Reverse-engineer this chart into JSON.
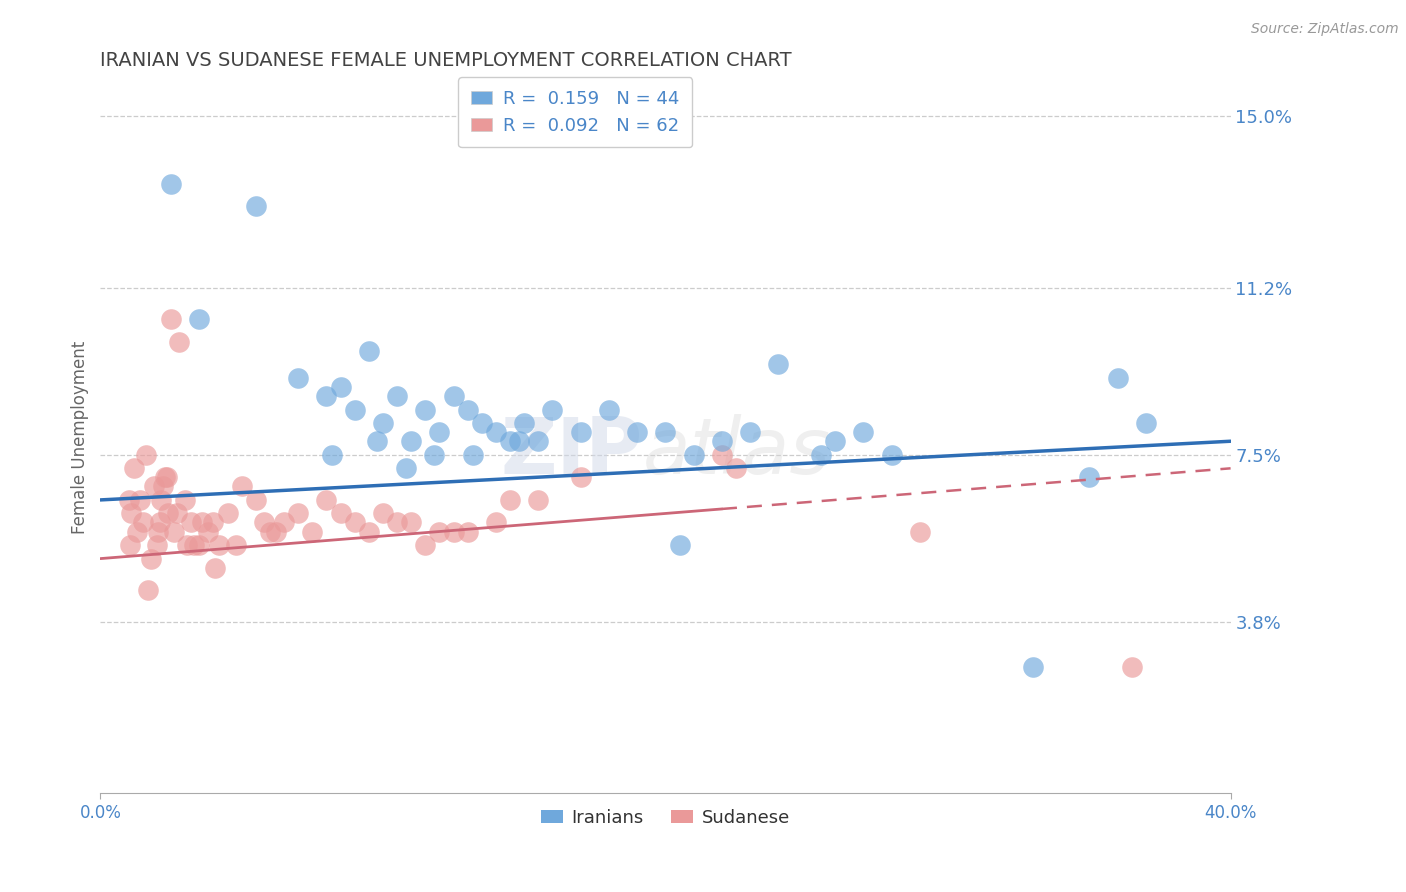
{
  "title": "IRANIAN VS SUDANESE FEMALE UNEMPLOYMENT CORRELATION CHART",
  "source_text": "Source: ZipAtlas.com",
  "ylabel": "Female Unemployment",
  "xlim": [
    0.0,
    40.0
  ],
  "ylim": [
    0.0,
    15.75
  ],
  "yticks": [
    3.8,
    7.5,
    11.2,
    15.0
  ],
  "ytick_labels": [
    "3.8%",
    "7.5%",
    "11.2%",
    "15.0%"
  ],
  "xtick_labels": [
    "0.0%",
    "40.0%"
  ],
  "iranian_color": "#6fa8dc",
  "sudanese_color": "#ea9999",
  "iranian_line_color": "#2e6eb5",
  "sudanese_line_color": "#cc6677",
  "iranian_R": 0.159,
  "iranian_N": 44,
  "sudanese_R": 0.092,
  "sudanese_N": 62,
  "title_color": "#434343",
  "axis_color": "#4a86c8",
  "watermark_zip": "ZIP",
  "watermark_atlas": "atlas",
  "iranians_x": [
    2.5,
    3.5,
    5.5,
    7.0,
    8.0,
    8.5,
    9.0,
    9.5,
    10.0,
    10.5,
    11.0,
    11.5,
    12.0,
    12.5,
    13.0,
    13.5,
    14.0,
    14.5,
    15.0,
    15.5,
    16.0,
    17.0,
    18.0,
    19.0,
    20.0,
    21.0,
    22.0,
    23.0,
    24.0,
    25.5,
    26.0,
    27.0,
    28.0,
    35.0,
    36.0,
    37.0,
    8.2,
    9.8,
    10.8,
    11.8,
    13.2,
    14.8,
    20.5,
    33.0
  ],
  "iranians_y": [
    13.5,
    10.5,
    13.0,
    9.2,
    8.8,
    9.0,
    8.5,
    9.8,
    8.2,
    8.8,
    7.8,
    8.5,
    8.0,
    8.8,
    8.5,
    8.2,
    8.0,
    7.8,
    8.2,
    7.8,
    8.5,
    8.0,
    8.5,
    8.0,
    8.0,
    7.5,
    7.8,
    8.0,
    9.5,
    7.5,
    7.8,
    8.0,
    7.5,
    7.0,
    9.2,
    8.2,
    7.5,
    7.8,
    7.2,
    7.5,
    7.5,
    7.8,
    5.5,
    2.8
  ],
  "sudanese_x": [
    1.0,
    1.2,
    1.4,
    1.5,
    1.6,
    1.7,
    1.8,
    1.9,
    2.0,
    2.1,
    2.2,
    2.3,
    2.4,
    2.5,
    2.6,
    2.7,
    2.8,
    3.0,
    3.2,
    3.5,
    3.8,
    4.0,
    4.5,
    5.0,
    5.5,
    6.0,
    6.5,
    7.0,
    8.0,
    9.0,
    10.0,
    11.0,
    12.0,
    13.0,
    14.0,
    15.5,
    17.0,
    22.0,
    29.0,
    36.5,
    1.1,
    1.3,
    2.15,
    2.35,
    3.3,
    4.2,
    5.8,
    7.5,
    8.5,
    9.5,
    10.5,
    11.5,
    12.5,
    3.6,
    4.8,
    6.2,
    1.05,
    2.05,
    3.05,
    4.05,
    14.5,
    22.5
  ],
  "sudanese_y": [
    6.5,
    7.2,
    6.5,
    6.0,
    7.5,
    4.5,
    5.2,
    6.8,
    5.5,
    6.0,
    6.8,
    7.0,
    6.2,
    10.5,
    5.8,
    6.2,
    10.0,
    6.5,
    6.0,
    5.5,
    5.8,
    6.0,
    6.2,
    6.8,
    6.5,
    5.8,
    6.0,
    6.2,
    6.5,
    6.0,
    6.2,
    6.0,
    5.8,
    5.8,
    6.0,
    6.5,
    7.0,
    7.5,
    5.8,
    2.8,
    6.2,
    5.8,
    6.5,
    7.0,
    5.5,
    5.5,
    6.0,
    5.8,
    6.2,
    5.8,
    6.0,
    5.5,
    5.8,
    6.0,
    5.5,
    5.8,
    5.5,
    5.8,
    5.5,
    5.0,
    6.5,
    7.2
  ],
  "iranian_trendline": [
    6.5,
    7.8
  ],
  "sudanese_trendline_solid_end_x": 22.0,
  "sudanese_trendline": [
    5.2,
    7.2
  ]
}
